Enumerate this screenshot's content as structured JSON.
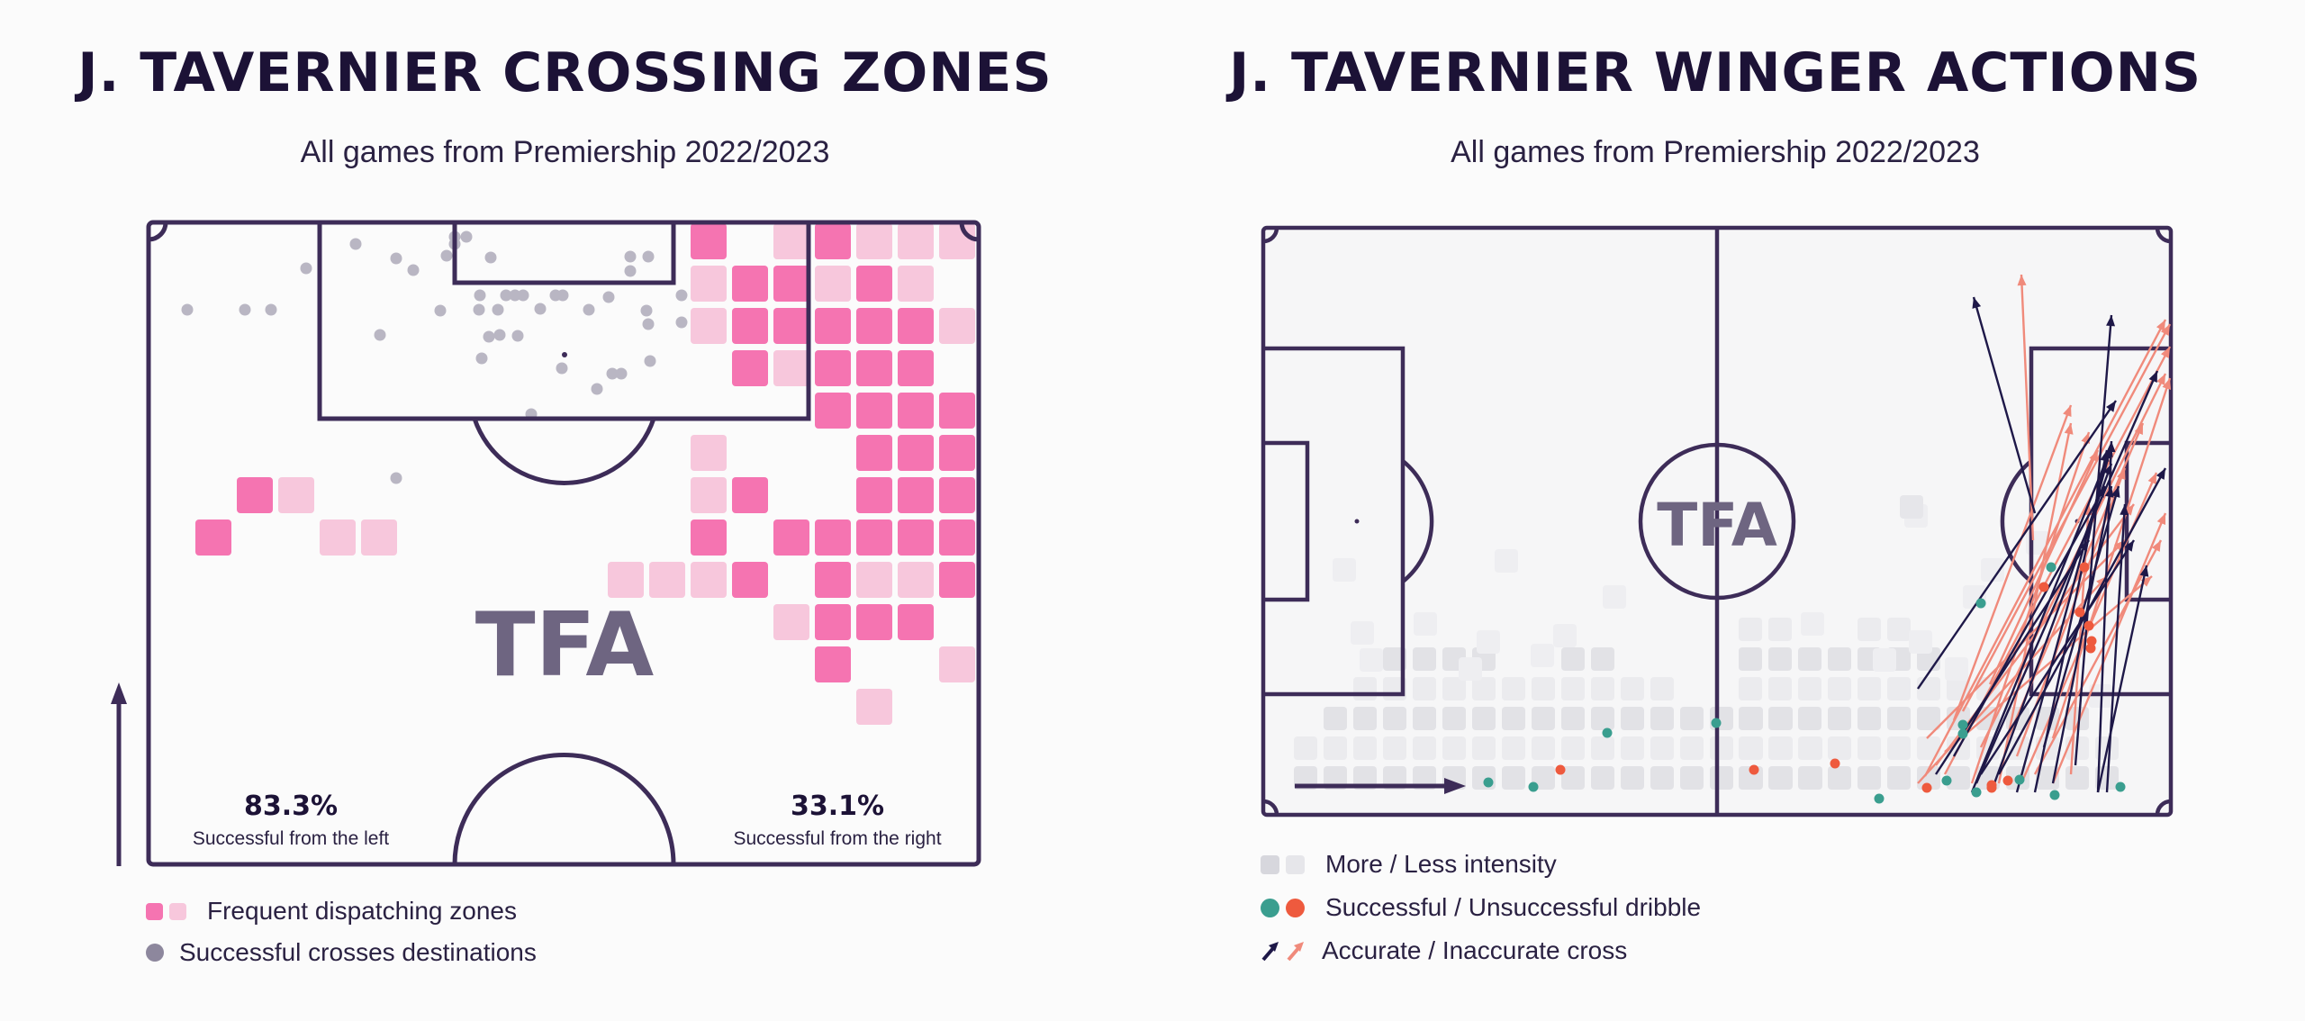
{
  "left": {
    "title": "J. TAVERNIER CROSSING ZONES",
    "subtitle": "All games from Premiership 2022/2023",
    "logo": "TFA",
    "stat_left": {
      "value": "83.3%",
      "label": "Successful from the left"
    },
    "stat_right": {
      "value": "33.1%",
      "label": "Successful from the right"
    },
    "legend": {
      "zones": "Frequent dispatching zones",
      "destinations": "Successful crosses destinations"
    },
    "colors": {
      "zone_strong": "#f574b1",
      "zone_light": "#f7c7dc",
      "destination": "#b9b6c3",
      "line": "#3d2c58"
    }
  },
  "right": {
    "title": "J. TAVERNIER WINGER ACTIONS",
    "subtitle": "All games from Premiership 2022/2023",
    "logo": "TFA",
    "legend": {
      "intensity": "More / Less intensity",
      "dribble": "Successful / Unsuccessful dribble",
      "cross": "Accurate / Inaccurate cross"
    },
    "colors": {
      "intensity_more": "#e2e2e6",
      "intensity_less": "#efeff2",
      "dribble_success": "#3a9e8f",
      "dribble_fail": "#ee5a3e",
      "cross_accurate": "#1e1848",
      "cross_inaccurate": "#f08a7b"
    }
  }
}
